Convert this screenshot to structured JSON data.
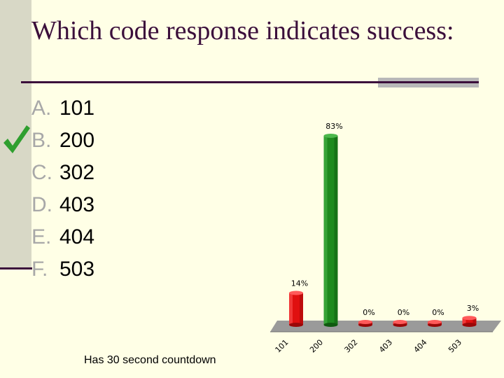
{
  "slide": {
    "title": "Which code response indicates success:",
    "countdown_note": "Has 30 second countdown",
    "answers": [
      {
        "letter": "A.",
        "text": "101",
        "correct": false
      },
      {
        "letter": "B.",
        "text": "200",
        "correct": true
      },
      {
        "letter": "C.",
        "text": "302",
        "correct": false
      },
      {
        "letter": "D.",
        "text": "403",
        "correct": false
      },
      {
        "letter": "E.",
        "text": "404",
        "correct": false
      },
      {
        "letter": "F.",
        "text": "503",
        "correct": false
      }
    ],
    "correct_mark_icon": "checkmark-icon"
  },
  "chart_data": {
    "type": "bar",
    "categories": [
      "101",
      "200",
      "302",
      "403",
      "404",
      "503"
    ],
    "values": [
      14,
      83,
      0,
      0,
      0,
      3
    ],
    "value_labels": [
      "14%",
      "83%",
      "0%",
      "0%",
      "0%",
      "3%"
    ],
    "ylim": [
      0,
      100
    ],
    "colors": [
      "#E01010",
      "#1E8A1E",
      "#E01010",
      "#E01010",
      "#E01010",
      "#E01010"
    ],
    "grid": false,
    "legend": "none"
  },
  "colors": {
    "background": "#FFFFE6",
    "title": "#3B0F3B",
    "check": "#2F9F2F",
    "floor": "#9A9A9A"
  }
}
